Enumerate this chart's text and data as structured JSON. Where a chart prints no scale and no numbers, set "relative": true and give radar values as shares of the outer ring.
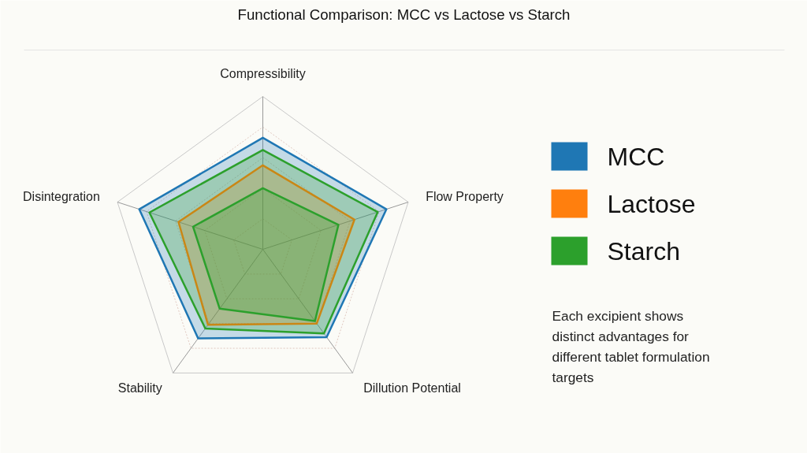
{
  "chart_data": {
    "type": "radar",
    "title": "Functional Comparison: MCC vs Lactose vs Starch",
    "categories": [
      "Compressibility",
      "Flow Property",
      "Dillution Potential",
      "Stability",
      "Disintegration"
    ],
    "relative": true,
    "series": [
      {
        "name": "MCC",
        "color": "#1f77b4",
        "values": [
          0.73,
          0.85,
          0.71,
          0.72,
          0.85
        ]
      },
      {
        "name": "Lactose",
        "color": "#ff7f0e",
        "values": [
          0.55,
          0.63,
          0.6,
          0.61,
          0.58
        ]
      },
      {
        "name": "Starch",
        "color": "#2ca02c",
        "values": [
          0.65,
          0.79,
          0.68,
          0.64,
          0.78
        ]
      },
      {
        "color": "#2ca02c",
        "values": [
          0.4,
          0.52,
          0.58,
          0.48,
          0.48
        ]
      }
    ],
    "legend": "right",
    "annotations": [
      "Each excipient shows distinct advantages for different tablet formulation targets"
    ]
  }
}
